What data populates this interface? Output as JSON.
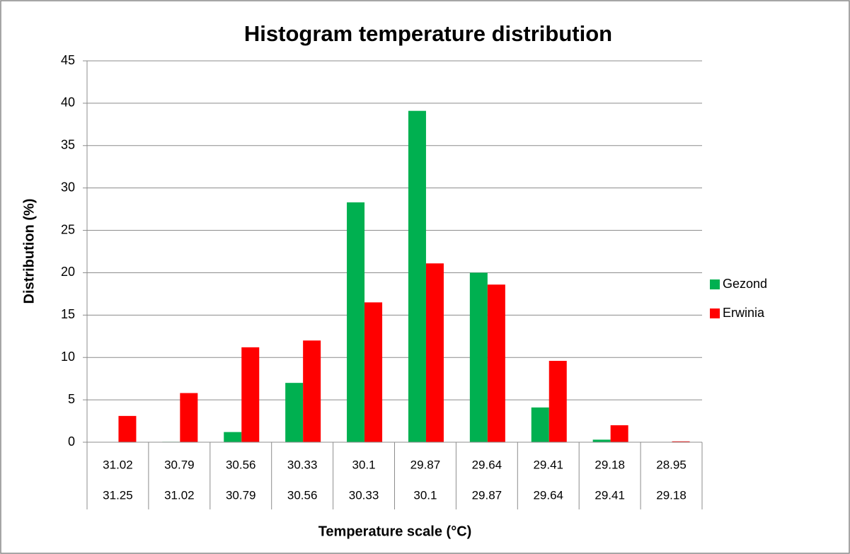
{
  "chart_data": {
    "type": "bar",
    "title": "Histogram temperature distribution",
    "xlabel": "Temperature scale (°C)",
    "ylabel": "Distribution (%)",
    "categories": [
      [
        "31.02",
        "31.25"
      ],
      [
        "30.79",
        "31.02"
      ],
      [
        "30.56",
        "30.79"
      ],
      [
        "30.33",
        "30.56"
      ],
      [
        "30.1",
        "30.33"
      ],
      [
        "29.87",
        "30.1"
      ],
      [
        "29.64",
        "29.87"
      ],
      [
        "29.41",
        "29.64"
      ],
      [
        "29.18",
        "29.41"
      ],
      [
        "28.95",
        "29.18"
      ]
    ],
    "series": [
      {
        "name": "Gezond",
        "color": "#00b050",
        "values": [
          0,
          0.05,
          1.2,
          7,
          28.3,
          39.1,
          20,
          4.1,
          0.3,
          0
        ]
      },
      {
        "name": "Erwinia",
        "color": "#ff0000",
        "values": [
          3.1,
          5.8,
          11.2,
          12,
          16.5,
          21.1,
          18.6,
          9.6,
          2,
          0.1
        ]
      }
    ],
    "ylim": [
      0,
      45
    ],
    "yticks": [
      0,
      5,
      10,
      15,
      20,
      25,
      30,
      35,
      40,
      45
    ],
    "grid": true,
    "legend": "right"
  }
}
